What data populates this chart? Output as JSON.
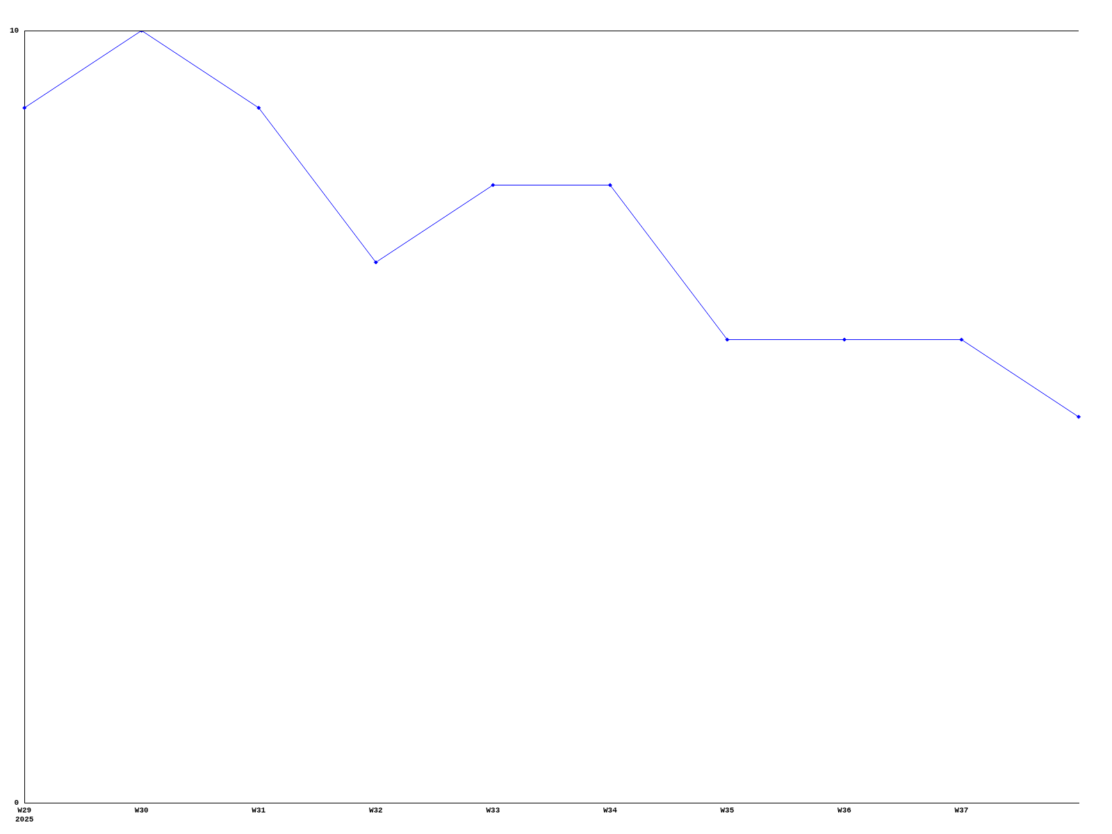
{
  "chart_data": {
    "type": "line",
    "categories": [
      "W29\n2025",
      "W30",
      "W31",
      "W32",
      "W33",
      "W34",
      "W35",
      "W36",
      "W37",
      null
    ],
    "series": [
      {
        "color": "#0000ff",
        "values": [
          9,
          10,
          9,
          7,
          8,
          8,
          6,
          6,
          6,
          5
        ]
      }
    ],
    "ylim": [
      0,
      10
    ],
    "yticks": [
      0,
      10
    ],
    "grid": false,
    "legend": false,
    "marker": "diamond",
    "line_style": "solid"
  }
}
